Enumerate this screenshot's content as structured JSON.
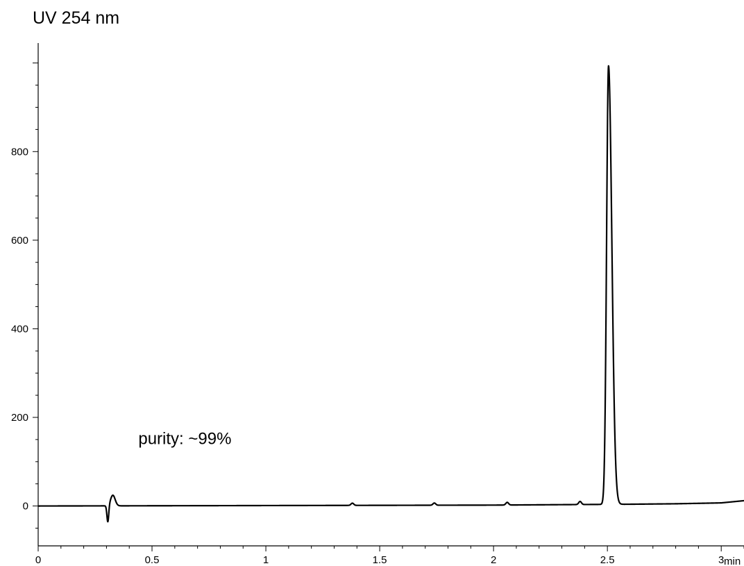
{
  "chart_data": {
    "type": "line",
    "title": "UV 254 nm",
    "xlabel": "min",
    "ylabel": "",
    "xlim": [
      0,
      3.1
    ],
    "ylim": [
      -90,
      1045
    ],
    "x_ticks": [
      {
        "value": 0,
        "label": "0"
      },
      {
        "value": 0.5,
        "label": "0.5"
      },
      {
        "value": 1,
        "label": "1"
      },
      {
        "value": 1.5,
        "label": "1.5"
      },
      {
        "value": 2,
        "label": "2"
      },
      {
        "value": 2.5,
        "label": "2.5"
      },
      {
        "value": 3,
        "label": "3"
      }
    ],
    "y_ticks": [
      {
        "value": 0,
        "label": "0"
      },
      {
        "value": 200,
        "label": "200"
      },
      {
        "value": 400,
        "label": "400"
      },
      {
        "value": 600,
        "label": "600"
      },
      {
        "value": 800,
        "label": "800"
      }
    ],
    "annotation": "purity: ~99%",
    "annotation_position": {
      "x": 0.44,
      "y": 140
    },
    "baseline": [
      [
        0,
        0
      ],
      [
        1,
        1
      ],
      [
        2,
        2
      ],
      [
        2.6,
        4
      ],
      [
        2.8,
        5
      ],
      [
        3.0,
        7
      ],
      [
        3.1,
        12
      ]
    ],
    "peaks": [
      {
        "rt": 0.306,
        "height": -38,
        "width": 0.004
      },
      {
        "rt": 0.328,
        "height": 24,
        "width": 0.01
      },
      {
        "rt": 1.38,
        "height": 5,
        "width": 0.006
      },
      {
        "rt": 1.74,
        "height": 5,
        "width": 0.006
      },
      {
        "rt": 2.06,
        "height": 6,
        "width": 0.006
      },
      {
        "rt": 2.38,
        "height": 7,
        "width": 0.006
      },
      {
        "rt": 2.505,
        "height": 990,
        "width": 0.0085,
        "tail": 0.006
      }
    ]
  }
}
